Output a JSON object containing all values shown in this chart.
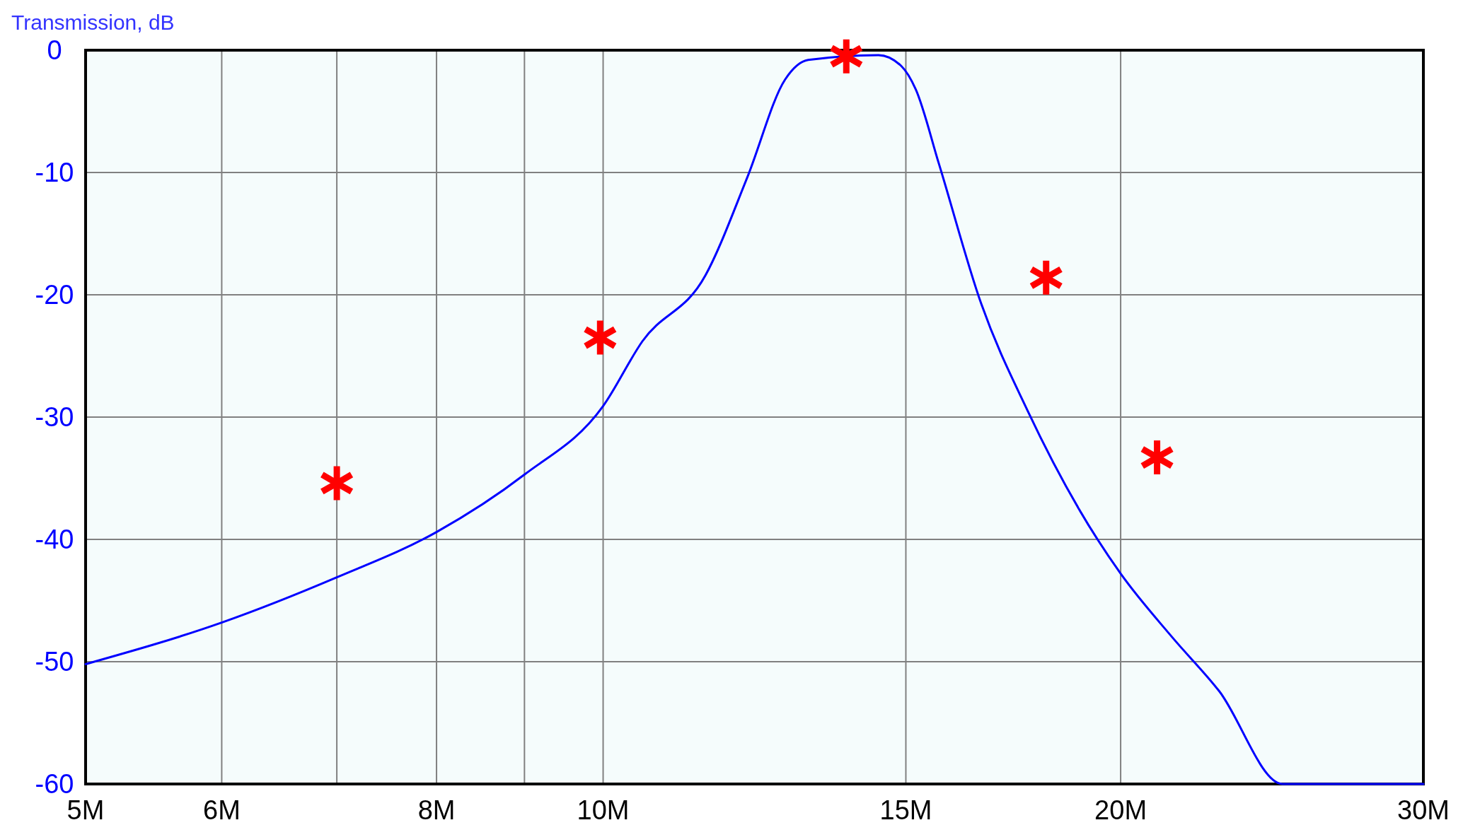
{
  "chart_data": {
    "type": "line",
    "ylabel": "Transmission, dB",
    "log": "x",
    "grid": true,
    "xlim": [
      5000000,
      30000000
    ],
    "xticks": [
      {
        "value": 5000000,
        "label": "5M"
      },
      {
        "value": 6000000,
        "label": "6M"
      },
      {
        "value": 7000000,
        "label": null
      },
      {
        "value": 8000000,
        "label": "8M"
      },
      {
        "value": 9000000,
        "label": null
      },
      {
        "value": 10000000,
        "label": "10M"
      },
      {
        "value": 15000000,
        "label": "15M"
      },
      {
        "value": 20000000,
        "label": "20M"
      },
      {
        "value": 30000000,
        "label": "30M"
      }
    ],
    "ylim": [
      -60,
      0
    ],
    "yticks": [
      -60,
      -50,
      -40,
      -30,
      -20,
      -10,
      0
    ],
    "series": [
      {
        "color": "#0000ff",
        "marker": "none",
        "line_style": "solid",
        "x": [
          5000000,
          6000000,
          7000000,
          8000000,
          9000000,
          10000000,
          10540000,
          11470000,
          12130000,
          12760000,
          13160000,
          14460000,
          14910000,
          15200000,
          15680000,
          16590000,
          17660000,
          18910000,
          20000000,
          21430000,
          22820000,
          24840000,
          30000000
        ],
        "values": [
          -50.2,
          -46.8,
          -43.1,
          -39.4,
          -34.7,
          -29.1,
          -23.8,
          -18.4,
          -10.4,
          -2.4,
          -0.8,
          -0.4,
          -1.3,
          -3.2,
          -9.3,
          -20.7,
          -29.5,
          -37.5,
          -42.8,
          -48,
          -52.4,
          -60,
          -60
        ]
      },
      {
        "type": "scatter",
        "color": "#ff0000",
        "marker": "cross",
        "x": [
          7000000,
          9960000,
          13850000,
          18100000,
          21000000
        ],
        "values": [
          -35.4,
          -23.5,
          -0.5,
          -18.6,
          -33.3
        ]
      }
    ]
  }
}
